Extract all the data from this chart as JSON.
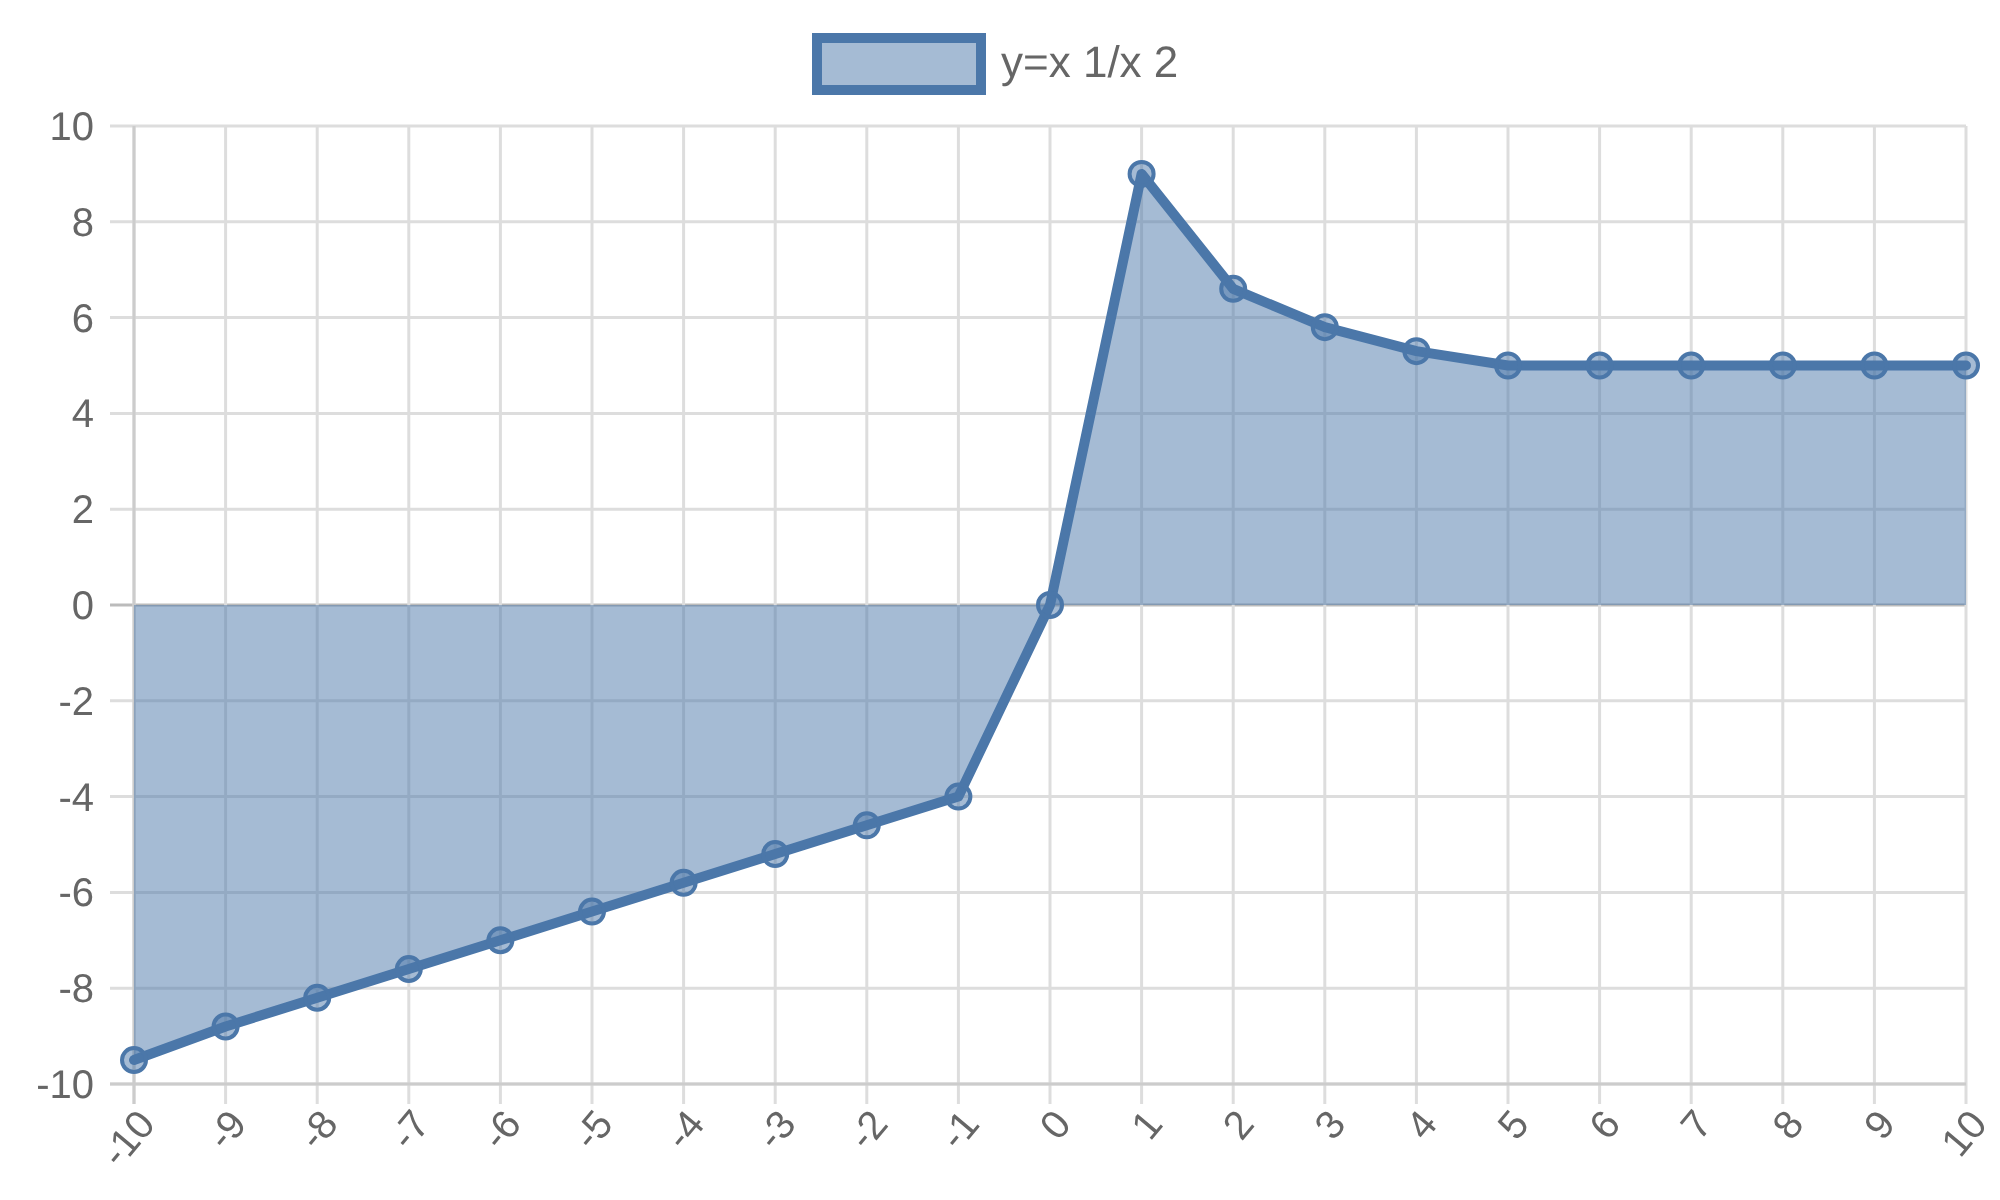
{
  "chart_data": {
    "type": "area",
    "x": [
      -10,
      -9,
      -8,
      -7,
      -6,
      -5,
      -4,
      -3,
      -2,
      -1,
      0,
      1,
      2,
      3,
      4,
      5,
      6,
      7,
      8,
      9,
      10
    ],
    "series": [
      {
        "name": "y=x 1/x 2",
        "color": "#4b77a9",
        "values": [
          -9.5,
          -8.8,
          -8.2,
          -7.6,
          -7.0,
          -6.4,
          -5.8,
          -5.2,
          -4.6,
          -4.0,
          0,
          9.0,
          6.6,
          5.8,
          5.3,
          5.0,
          5.0,
          5.0,
          5.0,
          5.0,
          5.0
        ]
      }
    ],
    "xlim": [
      -10,
      10
    ],
    "xticks": [
      -10,
      -9,
      -8,
      -7,
      -6,
      -5,
      -4,
      -3,
      -2,
      -1,
      0,
      1,
      2,
      3,
      4,
      5,
      6,
      7,
      8,
      9,
      10
    ],
    "ylim": [
      -10,
      10
    ],
    "yticks": [
      -10,
      -8,
      -6,
      -4,
      -2,
      0,
      2,
      4,
      6,
      8,
      10
    ],
    "grid": true,
    "legend": "top",
    "marker": "circle",
    "line_style": "solid"
  }
}
